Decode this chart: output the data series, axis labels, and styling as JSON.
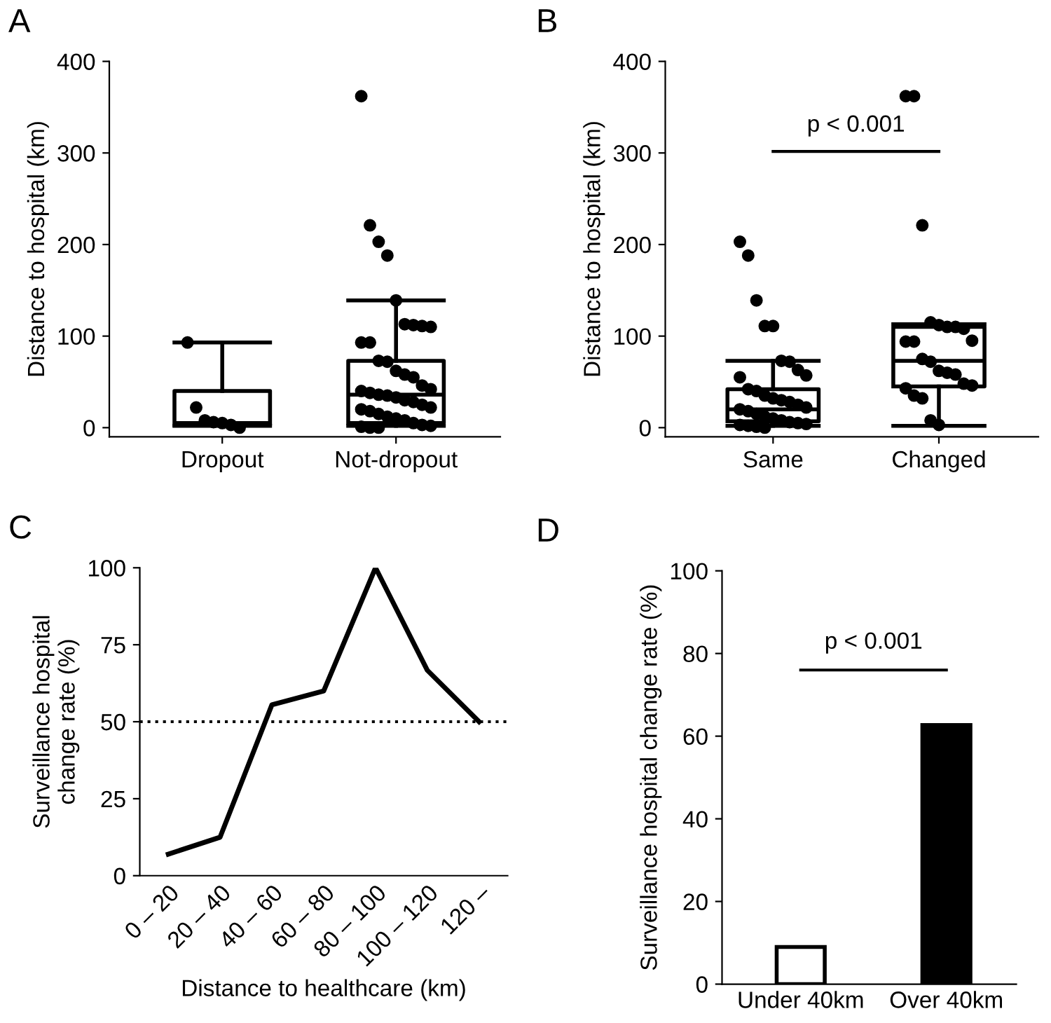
{
  "chart_data": [
    {
      "type": "box",
      "title": "A",
      "ylabel": "Distance to hospital (km)",
      "categories": [
        "Dropout",
        "Not-dropout"
      ],
      "boxes": [
        {
          "low": 2,
          "q1": 3,
          "median": 5,
          "q3": 40,
          "high": 93
        },
        {
          "low": 2,
          "q1": 5,
          "median": 36,
          "q3": 73,
          "high": 139
        }
      ],
      "series": [
        {
          "type": "scatter",
          "color": "#000000",
          "x": [
            "Dropout",
            "Dropout",
            "Dropout",
            "Dropout",
            "Dropout",
            "Dropout",
            "Dropout"
          ],
          "values": [
            93,
            22,
            8,
            6,
            5,
            3,
            0
          ]
        },
        {
          "type": "scatter",
          "color": "#000000",
          "x": [
            "Not-dropout",
            "Not-dropout",
            "Not-dropout",
            "Not-dropout",
            "Not-dropout",
            "Not-dropout",
            "Not-dropout",
            "Not-dropout",
            "Not-dropout",
            "Not-dropout",
            "Not-dropout",
            "Not-dropout",
            "Not-dropout",
            "Not-dropout",
            "Not-dropout",
            "Not-dropout",
            "Not-dropout",
            "Not-dropout",
            "Not-dropout",
            "Not-dropout",
            "Not-dropout",
            "Not-dropout",
            "Not-dropout",
            "Not-dropout",
            "Not-dropout",
            "Not-dropout",
            "Not-dropout",
            "Not-dropout",
            "Not-dropout",
            "Not-dropout",
            "Not-dropout",
            "Not-dropout",
            "Not-dropout",
            "Not-dropout",
            "Not-dropout",
            "Not-dropout",
            "Not-dropout",
            "Not-dropout",
            "Not-dropout"
          ],
          "values": [
            362,
            221,
            203,
            188,
            139,
            113,
            112,
            111,
            110,
            93,
            93,
            73,
            72,
            62,
            58,
            55,
            46,
            42,
            40,
            38,
            36,
            35,
            33,
            30,
            28,
            25,
            22,
            20,
            18,
            15,
            12,
            10,
            8,
            5,
            3,
            2,
            1,
            0,
            0
          ]
        }
      ],
      "ylim": [
        -10,
        400
      ],
      "yticks": [
        0,
        100,
        200,
        300,
        400
      ]
    },
    {
      "type": "box",
      "title": "B",
      "ylabel": "Distance to hospital (km)",
      "categories": [
        "Same",
        "Changed"
      ],
      "boxes": [
        {
          "low": 2,
          "q1": 7,
          "median": 20,
          "q3": 42,
          "high": 73
        },
        {
          "low": 2,
          "q1": 45,
          "median": 73,
          "q3": 110,
          "high": 113
        }
      ],
      "series": [
        {
          "type": "scatter",
          "color": "#000000",
          "x": [
            "Same",
            "Same",
            "Same",
            "Same",
            "Same",
            "Same",
            "Same",
            "Same",
            "Same",
            "Same",
            "Same",
            "Same",
            "Same",
            "Same",
            "Same",
            "Same",
            "Same",
            "Same",
            "Same",
            "Same",
            "Same",
            "Same",
            "Same",
            "Same",
            "Same",
            "Same",
            "Same",
            "Same",
            "Same",
            "Same",
            "Same"
          ],
          "values": [
            203,
            188,
            139,
            111,
            111,
            73,
            72,
            63,
            57,
            55,
            42,
            40,
            35,
            32,
            30,
            28,
            25,
            22,
            20,
            18,
            15,
            12,
            10,
            8,
            6,
            5,
            4,
            3,
            2,
            1,
            0
          ]
        },
        {
          "type": "scatter",
          "color": "#000000",
          "x": [
            "Changed",
            "Changed",
            "Changed",
            "Changed",
            "Changed",
            "Changed",
            "Changed",
            "Changed",
            "Changed",
            "Changed",
            "Changed",
            "Changed",
            "Changed",
            "Changed",
            "Changed",
            "Changed",
            "Changed",
            "Changed",
            "Changed",
            "Changed",
            "Changed",
            "Changed",
            "Changed"
          ],
          "values": [
            362,
            362,
            221,
            115,
            112,
            110,
            110,
            108,
            95,
            94,
            94,
            75,
            72,
            62,
            60,
            58,
            48,
            46,
            43,
            35,
            32,
            8,
            3
          ]
        }
      ],
      "annotations": [
        "p < 0.001"
      ],
      "ylim": [
        -10,
        400
      ],
      "yticks": [
        0,
        100,
        200,
        300,
        400
      ]
    },
    {
      "type": "line",
      "title": "C",
      "ylabel": "Surveillance hospital\nchange rate (%)",
      "xlabel": "Distance to healthcare (km)",
      "categories": [
        "0 – 20",
        "20 – 40",
        "40 – 60",
        "60 – 80",
        "80 – 100",
        "100 – 120",
        "120 –"
      ],
      "values": [
        7,
        12.5,
        55.5,
        60,
        100,
        66.7,
        50
      ],
      "color": "#000000",
      "line_style": "solid",
      "ref_lines": [
        {
          "axis": "y",
          "value": 50,
          "color": "#000000",
          "line_style": "dotted"
        }
      ],
      "ylim": [
        0,
        100
      ],
      "yticks": [
        0,
        25,
        50,
        75,
        100
      ]
    },
    {
      "type": "bar",
      "title": "D",
      "ylabel": "Surveillance hospital change rate (%)",
      "categories": [
        "Under 40km",
        "Over 40km"
      ],
      "values": [
        9,
        62.7
      ],
      "colors": [
        "#ffffff",
        "#000000"
      ],
      "annotations": [
        "p < 0.001"
      ],
      "ylim": [
        0,
        100
      ],
      "yticks": [
        0,
        20,
        40,
        60,
        80,
        100
      ]
    }
  ]
}
